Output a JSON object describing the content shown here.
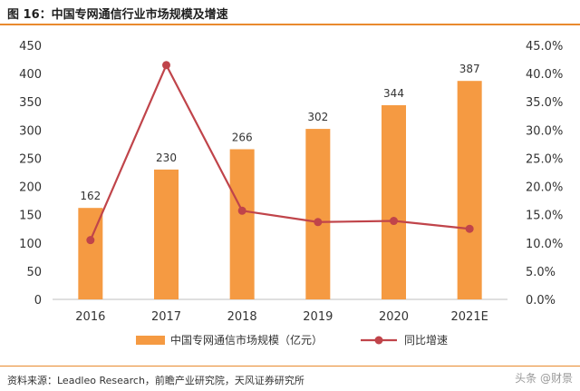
{
  "title": "图 16：中国专网通信行业市场规模及增速",
  "source": "资料来源：Leadleo Research，前瞻产业研究院，天风证券研究所",
  "watermark": "头条 @财景",
  "colors": {
    "bar": "#f59a42",
    "line": "#c0444a",
    "accent": "#e98a2e"
  },
  "chart_data": {
    "type": "bar",
    "categories": [
      "2016",
      "2017",
      "2018",
      "2019",
      "2020",
      "2021E"
    ],
    "series": [
      {
        "name": "中国专网通信市场规模（亿元）",
        "type": "bar",
        "axis": "left",
        "values": [
          162,
          230,
          266,
          302,
          344,
          387
        ]
      },
      {
        "name": "同比增速",
        "type": "line",
        "axis": "right",
        "values": [
          10.5,
          41.5,
          15.7,
          13.7,
          13.9,
          12.5
        ]
      }
    ],
    "y_left": {
      "min": 0,
      "max": 450,
      "ticks": [
        "0",
        "50",
        "100",
        "150",
        "200",
        "250",
        "300",
        "350",
        "400",
        "450"
      ]
    },
    "y_right": {
      "min": 0,
      "max": 45,
      "ticks": [
        "0.0%",
        "5.0%",
        "10.0%",
        "15.0%",
        "20.0%",
        "25.0%",
        "30.0%",
        "35.0%",
        "40.0%",
        "45.0%"
      ]
    },
    "legend_position": "bottom",
    "grid": false
  }
}
